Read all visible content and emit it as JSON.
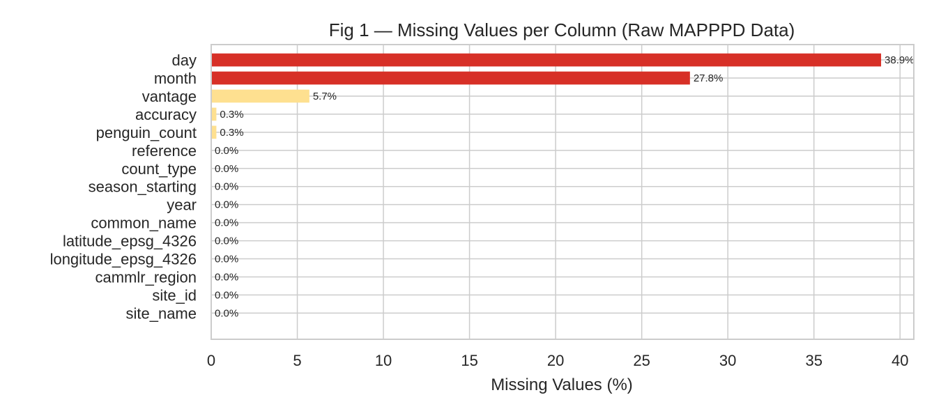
{
  "chart_data": {
    "type": "bar",
    "orientation": "horizontal",
    "title": "Fig 1 — Missing Values per Column (Raw MAPPPD Data)",
    "xlabel": "Missing Values (%)",
    "ylabel": "",
    "xlim": [
      0,
      40.8
    ],
    "xticks": [
      0,
      5,
      10,
      15,
      20,
      25,
      30,
      35,
      40
    ],
    "grid": true,
    "categories": [
      "day",
      "month",
      "vantage",
      "accuracy",
      "penguin_count",
      "reference",
      "count_type",
      "season_starting",
      "year",
      "common_name",
      "latitude_epsg_4326",
      "longitude_epsg_4326",
      "cammlr_region",
      "site_id",
      "site_name"
    ],
    "values": [
      38.9,
      27.8,
      5.7,
      0.3,
      0.3,
      0.0,
      0.0,
      0.0,
      0.0,
      0.0,
      0.0,
      0.0,
      0.0,
      0.0,
      0.0
    ],
    "data_labels": [
      "38.9%",
      "27.8%",
      "5.7%",
      "0.3%",
      "0.3%",
      "0.0%",
      "0.0%",
      "0.0%",
      "0.0%",
      "0.0%",
      "0.0%",
      "0.0%",
      "0.0%",
      "0.0%",
      "0.0%"
    ],
    "colors": {
      "high": "#d73027",
      "low": "#fee090",
      "grid": "#cccccc",
      "axes": "#cccccc",
      "text": "#262626"
    }
  }
}
